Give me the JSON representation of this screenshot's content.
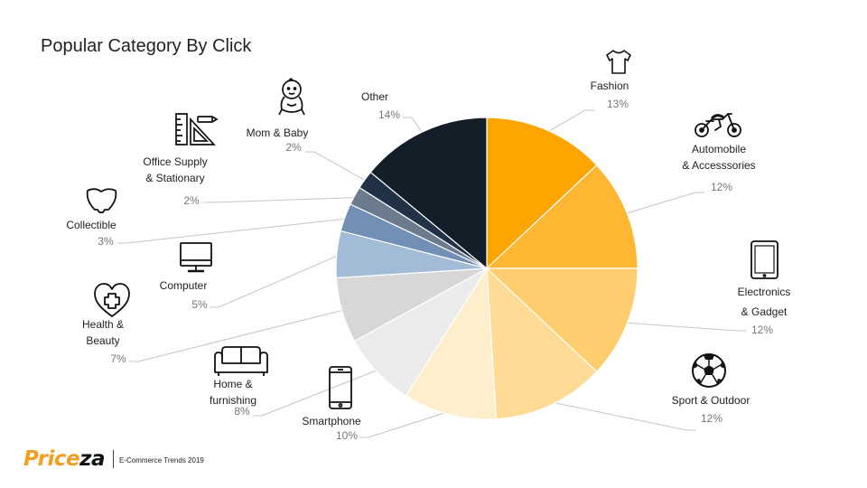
{
  "title": "Popular Category By Click",
  "brand": {
    "logo_part1": "Price",
    "logo_part2": "za",
    "tagline": "E-Commerce Trends 2019"
  },
  "chart_data": {
    "type": "pie",
    "title": "Popular Category By Click",
    "slices": [
      {
        "name": "Fashion",
        "label_lines": [
          "Fashion"
        ],
        "value": 13,
        "value_label": "13%",
        "color": "#ffa500",
        "icon": "tshirt-icon"
      },
      {
        "name": "Automobile & Accesssories",
        "label_lines": [
          "Automobile",
          "& Accesssories"
        ],
        "value": 12,
        "value_label": "12%",
        "color": "#ffb733",
        "icon": "motorcycle-icon"
      },
      {
        "name": "Electronics & Gadget",
        "label_lines": [
          "Electronics",
          "& Gadget"
        ],
        "value": 12,
        "value_label": "12%",
        "color": "#ffcd6e",
        "icon": "tablet-icon"
      },
      {
        "name": "Sport & Outdoor",
        "label_lines": [
          "Sport & Outdoor"
        ],
        "value": 12,
        "value_label": "12%",
        "color": "#ffdb96",
        "icon": "soccer-ball-icon"
      },
      {
        "name": "Smartphone",
        "label_lines": [
          "Smartphone"
        ],
        "value": 10,
        "value_label": "10%",
        "color": "#ffeecc",
        "icon": "smartphone-icon"
      },
      {
        "name": "Home & furnishing",
        "label_lines": [
          "Home &",
          "furnishing"
        ],
        "value": 8,
        "value_label": "8%",
        "color": "#ebebeb",
        "icon": "sofa-icon"
      },
      {
        "name": "Health & Beauty",
        "label_lines": [
          "Health &",
          "Beauty"
        ],
        "value": 7,
        "value_label": "7%",
        "color": "#d7d7d7",
        "icon": "heart-plus-icon"
      },
      {
        "name": "Computer",
        "label_lines": [
          "Computer"
        ],
        "value": 5,
        "value_label": "5%",
        "color": "#a2bbd6",
        "icon": "monitor-icon"
      },
      {
        "name": "Collectible",
        "label_lines": [
          "Collectible"
        ],
        "value": 3,
        "value_label": "3%",
        "color": "#7290b6",
        "icon": "bowl-icon"
      },
      {
        "name": "Office Supply & Stationary",
        "label_lines": [
          "Office Supply",
          "& Stationary"
        ],
        "value": 2,
        "value_label": "2%",
        "color": "#6b7b8d",
        "icon": "office-supply-icon"
      },
      {
        "name": "Mom & Baby",
        "label_lines": [
          "Mom & Baby"
        ],
        "value": 2,
        "value_label": "2%",
        "color": "#223246",
        "icon": "baby-icon"
      },
      {
        "name": "Other",
        "label_lines": [
          "Other"
        ],
        "value": 14,
        "value_label": "14%",
        "color": "#141e29",
        "icon": ""
      }
    ]
  }
}
